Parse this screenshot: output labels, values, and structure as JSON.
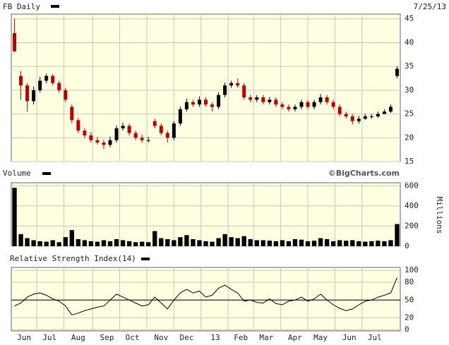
{
  "chart_data": [
    {
      "type": "candlestick",
      "title": "FB Daily",
      "date": "7/25/13",
      "up_color": "#000000",
      "down_color": "#c00000",
      "xlim": [
        -0.5,
        60.5
      ],
      "ylim": [
        15,
        46
      ],
      "yticks": [
        15,
        20,
        25,
        30,
        35,
        40,
        45
      ],
      "grid": true,
      "open": [
        42,
        33,
        31,
        27.7,
        30,
        32,
        33,
        31.5,
        30,
        26.5,
        23.7,
        21.5,
        20.5,
        19.5,
        19,
        18.5,
        19.5,
        22,
        22.5,
        21,
        20,
        19.5,
        23.5,
        22.5,
        21,
        20,
        23,
        26,
        27.5,
        27,
        28,
        27,
        26.5,
        29,
        31,
        31.5,
        31,
        28.5,
        28,
        28.5,
        27.5,
        28,
        27,
        26.5,
        26,
        26.5,
        27.5,
        26.5,
        27.5,
        28.5,
        27.5,
        26.5,
        25,
        24.5,
        23.5,
        24,
        24.5,
        24.5,
        25,
        25.5,
        33
      ],
      "high": [
        45,
        34,
        31.5,
        30.8,
        32.8,
        33.5,
        33.4,
        32,
        30.5,
        27,
        24.2,
        22,
        21.2,
        20.2,
        19.6,
        20.2,
        22.6,
        23.2,
        23,
        21.5,
        20.6,
        20.2,
        24,
        23,
        21.5,
        23.5,
        26.6,
        28.2,
        28,
        28.7,
        28.5,
        27.5,
        29.6,
        31.6,
        32,
        32.5,
        31.5,
        29,
        29,
        29,
        28.6,
        28.5,
        27.5,
        27,
        27,
        28,
        28,
        28,
        29.2,
        29,
        28,
        27,
        25.5,
        25,
        24.6,
        25,
        25,
        25.5,
        26,
        27,
        35
      ],
      "low": [
        38,
        28,
        25.5,
        27,
        29.5,
        31.5,
        31,
        29.5,
        27.5,
        23,
        21,
        20,
        19,
        18.6,
        17.6,
        18,
        19,
        21.5,
        20.5,
        19.5,
        19,
        19,
        22,
        20.5,
        19,
        19.5,
        22.5,
        25.5,
        26.5,
        26.5,
        26.5,
        25.5,
        26,
        28.5,
        30.5,
        30.5,
        28,
        27.5,
        27.5,
        27,
        27,
        26.5,
        26,
        25.5,
        25.5,
        26,
        26,
        26,
        27,
        27,
        26,
        24.5,
        24,
        22.8,
        23,
        23.8,
        24,
        24.2,
        25,
        25.2,
        32.5
      ],
      "close": [
        38.2,
        31,
        27.7,
        30,
        32,
        33,
        31.5,
        30,
        28,
        23.7,
        21.5,
        20.5,
        19.5,
        19,
        18.5,
        19.5,
        22,
        22.5,
        21,
        20,
        19.5,
        19.5,
        22.5,
        21,
        20,
        23,
        26,
        27.5,
        27,
        28,
        27,
        26.5,
        29,
        31,
        31.5,
        31,
        28.5,
        28,
        28.5,
        27.5,
        28,
        27,
        26.5,
        26,
        26.5,
        27.5,
        26.5,
        27.5,
        28.5,
        27.5,
        26.5,
        25,
        24.5,
        23.5,
        24,
        24.5,
        24.5,
        25,
        25.5,
        26.5,
        34.5
      ]
    },
    {
      "type": "bar",
      "title": "Volume",
      "credit": "©BigCharts.com",
      "y_label": "Millions",
      "color": "#000000",
      "xlim": [
        -0.5,
        60.5
      ],
      "ylim": [
        0,
        630
      ],
      "yticks": [
        0,
        200,
        400,
        600
      ],
      "grid": true,
      "values": [
        580,
        120,
        80,
        60,
        50,
        45,
        60,
        40,
        90,
        160,
        70,
        60,
        50,
        45,
        60,
        50,
        70,
        60,
        50,
        40,
        45,
        40,
        150,
        80,
        70,
        60,
        90,
        110,
        70,
        60,
        50,
        45,
        80,
        120,
        90,
        80,
        100,
        70,
        60,
        60,
        55,
        50,
        60,
        50,
        70,
        65,
        50,
        55,
        80,
        70,
        50,
        60,
        55,
        60,
        50,
        45,
        50,
        55,
        50,
        60,
        220
      ]
    },
    {
      "type": "line",
      "title": "Relative Strength Index(14)",
      "color": "#000000",
      "reference": 50,
      "xlim": [
        -0.5,
        60.5
      ],
      "ylim": [
        -2,
        105
      ],
      "yticks": [
        0,
        20,
        50,
        80,
        100
      ],
      "grid": true,
      "xticks": [
        {
          "value": 1.5,
          "label": "Jun"
        },
        {
          "value": 5.5,
          "label": "Jul"
        },
        {
          "value": 10,
          "label": "Aug"
        },
        {
          "value": 14.5,
          "label": "Sep"
        },
        {
          "value": 18.5,
          "label": "Oct"
        },
        {
          "value": 23,
          "label": "Nov"
        },
        {
          "value": 27,
          "label": "Dec"
        },
        {
          "value": 31.5,
          "label": "13"
        },
        {
          "value": 35.5,
          "label": "Feb"
        },
        {
          "value": 39.5,
          "label": "Mar"
        },
        {
          "value": 44,
          "label": "Apr"
        },
        {
          "value": 48,
          "label": "May"
        },
        {
          "value": 52.5,
          "label": "Jun"
        },
        {
          "value": 56.5,
          "label": "Jul"
        }
      ],
      "values": [
        40,
        45,
        55,
        60,
        62,
        58,
        52,
        48,
        40,
        25,
        28,
        32,
        35,
        38,
        40,
        50,
        60,
        55,
        50,
        45,
        40,
        42,
        55,
        45,
        35,
        50,
        62,
        68,
        62,
        65,
        55,
        58,
        70,
        75,
        68,
        62,
        48,
        50,
        46,
        45,
        52,
        44,
        42,
        48,
        50,
        55,
        48,
        52,
        60,
        50,
        42,
        36,
        32,
        35,
        42,
        48,
        50,
        55,
        58,
        62,
        88
      ]
    }
  ]
}
